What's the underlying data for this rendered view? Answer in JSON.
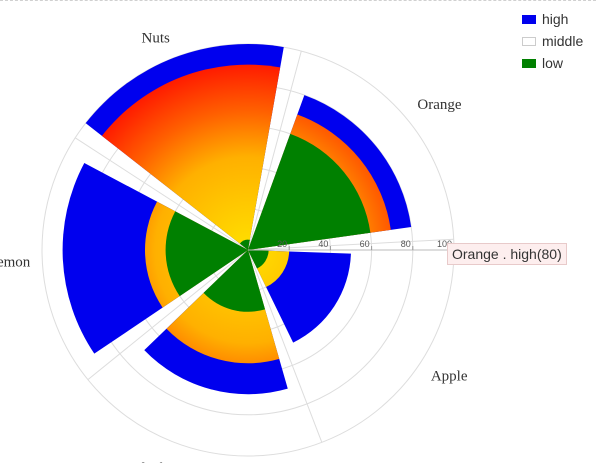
{
  "chart_data": {
    "type": "nightingale-rose",
    "categories": [
      "Orange",
      "Apple",
      "Blueberry",
      "Lemon",
      "Nuts"
    ],
    "series": [
      {
        "name": "high",
        "color": "#0000ee",
        "values": [
          80,
          50,
          70,
          90,
          100
        ]
      },
      {
        "name": "middle",
        "color": "#ffffff",
        "gradient": [
          "#ffe000",
          "#ff1a00"
        ],
        "values": [
          70,
          20,
          55,
          50,
          90
        ]
      },
      {
        "name": "low",
        "color": "#008000",
        "values": [
          60,
          10,
          30,
          40,
          5
        ]
      }
    ],
    "radial_axis": {
      "min": 0,
      "max": 100,
      "ticks": [
        "20",
        "40",
        "60",
        "80",
        "100"
      ]
    },
    "legend_position": "top-right",
    "grid": true
  },
  "tooltip": {
    "text": "Orange . high(80)"
  }
}
